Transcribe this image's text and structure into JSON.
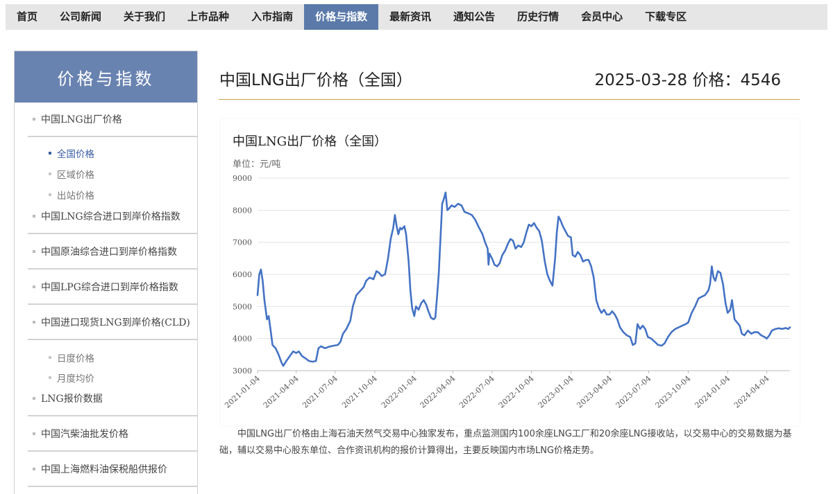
{
  "nav": {
    "items": [
      "首页",
      "公司新闻",
      "关于我们",
      "上市品种",
      "入市指南",
      "价格与指数",
      "最新资讯",
      "通知公告",
      "历史行情",
      "会员中心",
      "下载专区"
    ],
    "active_index": 5
  },
  "sidebar": {
    "title": "价格与指数",
    "items": [
      {
        "label": "中国LNG出厂价格",
        "subs": [
          "全国价格",
          "区域价格",
          "出站价格"
        ]
      },
      {
        "label": "中国LNG综合进口到岸价格指数"
      },
      {
        "label": "中国原油综合进口到岸价格指数"
      },
      {
        "label": "中国LPG综合进口到岸价格指数"
      },
      {
        "label": "中国进口现货LNG到岸价格(CLD)",
        "subs": [
          "日度价格",
          "月度均价"
        ]
      },
      {
        "label": "LNG报价数据"
      },
      {
        "label": "中国汽柴油批发价格"
      },
      {
        "label": "中国上海燃料油保税船供报价"
      }
    ],
    "active_sub": "全国价格"
  },
  "main": {
    "title": "中国LNG出厂价格（全国）",
    "price_line": "2025-03-28 价格：4546",
    "description": "中国LNG出厂价格由上海石油天然气交易中心独家发布，重点监测国内100余座LNG工厂和20余座LNG接收站，以交易中心的交易数据为基础，辅以交易中心股东单位、合作资讯机构的报价计算得出，主要反映国内市场LNG价格走势。"
  },
  "chart_data": {
    "type": "line",
    "title": "中国LNG出厂价格（全国）",
    "unit_label": "单位：元/吨",
    "ylim": [
      3000,
      9000
    ],
    "yticks": [
      3000,
      4000,
      5000,
      6000,
      7000,
      8000,
      9000
    ],
    "xticks": [
      "2021-01-04",
      "2021-04-04",
      "2021-07-04",
      "2021-10-04",
      "2022-01-04",
      "2022-04-04",
      "2022-07-04",
      "2022-10-04",
      "2023-01-04",
      "2023-04-04",
      "2023-07-04",
      "2023-10-04",
      "2024-01-04",
      "2024-04-04"
    ],
    "grid": true,
    "line_color": "#4472c4",
    "series": [
      {
        "values": [
          [
            "2021-01-04",
            5350
          ],
          [
            "2021-01-08",
            6000
          ],
          [
            "2021-01-12",
            6150
          ],
          [
            "2021-01-16",
            5800
          ],
          [
            "2021-01-20",
            5200
          ],
          [
            "2021-01-26",
            4600
          ],
          [
            "2021-01-30",
            4700
          ],
          [
            "2021-02-03",
            4300
          ],
          [
            "2021-02-08",
            3800
          ],
          [
            "2021-02-15",
            3700
          ],
          [
            "2021-02-22",
            3500
          ],
          [
            "2021-03-01",
            3250
          ],
          [
            "2021-03-05",
            3150
          ],
          [
            "2021-03-12",
            3300
          ],
          [
            "2021-03-20",
            3450
          ],
          [
            "2021-03-28",
            3600
          ],
          [
            "2021-04-04",
            3550
          ],
          [
            "2021-04-10",
            3600
          ],
          [
            "2021-04-18",
            3450
          ],
          [
            "2021-04-26",
            3380
          ],
          [
            "2021-05-04",
            3300
          ],
          [
            "2021-05-12",
            3280
          ],
          [
            "2021-05-20",
            3300
          ],
          [
            "2021-05-26",
            3700
          ],
          [
            "2021-06-01",
            3760
          ],
          [
            "2021-06-10",
            3700
          ],
          [
            "2021-06-20",
            3750
          ],
          [
            "2021-07-01",
            3780
          ],
          [
            "2021-07-10",
            3800
          ],
          [
            "2021-07-16",
            3900
          ],
          [
            "2021-07-22",
            4150
          ],
          [
            "2021-07-30",
            4300
          ],
          [
            "2021-08-08",
            4550
          ],
          [
            "2021-08-14",
            5000
          ],
          [
            "2021-08-22",
            5350
          ],
          [
            "2021-09-01",
            5500
          ],
          [
            "2021-09-08",
            5600
          ],
          [
            "2021-09-14",
            5800
          ],
          [
            "2021-09-22",
            5900
          ],
          [
            "2021-10-01",
            5850
          ],
          [
            "2021-10-08",
            6100
          ],
          [
            "2021-10-14",
            6050
          ],
          [
            "2021-10-20",
            5950
          ],
          [
            "2021-10-28",
            6000
          ],
          [
            "2021-11-04",
            6500
          ],
          [
            "2021-11-10",
            7100
          ],
          [
            "2021-11-16",
            7450
          ],
          [
            "2021-11-20",
            7850
          ],
          [
            "2021-11-24",
            7500
          ],
          [
            "2021-11-28",
            7250
          ],
          [
            "2021-12-02",
            7450
          ],
          [
            "2021-12-06",
            7400
          ],
          [
            "2021-12-12",
            7500
          ],
          [
            "2021-12-16",
            7250
          ],
          [
            "2021-12-22",
            6400
          ],
          [
            "2021-12-26",
            5500
          ],
          [
            "2021-12-30",
            4950
          ],
          [
            "2022-01-04",
            4700
          ],
          [
            "2022-01-08",
            5000
          ],
          [
            "2022-01-14",
            4900
          ],
          [
            "2022-01-20",
            5100
          ],
          [
            "2022-01-26",
            5200
          ],
          [
            "2022-02-01",
            5050
          ],
          [
            "2022-02-06",
            4850
          ],
          [
            "2022-02-12",
            4650
          ],
          [
            "2022-02-18",
            4600
          ],
          [
            "2022-02-22",
            4650
          ],
          [
            "2022-02-26",
            5300
          ],
          [
            "2022-03-02",
            6000
          ],
          [
            "2022-03-06",
            7100
          ],
          [
            "2022-03-10",
            8200
          ],
          [
            "2022-03-14",
            8350
          ],
          [
            "2022-03-18",
            8550
          ],
          [
            "2022-03-22",
            8000
          ],
          [
            "2022-03-26",
            8050
          ],
          [
            "2022-04-01",
            8150
          ],
          [
            "2022-04-08",
            8100
          ],
          [
            "2022-04-16",
            8200
          ],
          [
            "2022-04-24",
            8150
          ],
          [
            "2022-05-01",
            7950
          ],
          [
            "2022-05-10",
            7900
          ],
          [
            "2022-05-18",
            7850
          ],
          [
            "2022-05-26",
            7700
          ],
          [
            "2022-06-04",
            7450
          ],
          [
            "2022-06-12",
            7250
          ],
          [
            "2022-06-18",
            7000
          ],
          [
            "2022-06-24",
            6800
          ],
          [
            "2022-06-26",
            6300
          ],
          [
            "2022-06-28",
            6650
          ],
          [
            "2022-07-04",
            6500
          ],
          [
            "2022-07-10",
            6300
          ],
          [
            "2022-07-16",
            6250
          ],
          [
            "2022-07-22",
            6350
          ],
          [
            "2022-07-28",
            6600
          ],
          [
            "2022-08-04",
            6750
          ],
          [
            "2022-08-10",
            6950
          ],
          [
            "2022-08-16",
            7100
          ],
          [
            "2022-08-22",
            7050
          ],
          [
            "2022-08-28",
            6800
          ],
          [
            "2022-09-03",
            6900
          ],
          [
            "2022-09-10",
            6850
          ],
          [
            "2022-09-16",
            7000
          ],
          [
            "2022-09-22",
            7300
          ],
          [
            "2022-09-28",
            7550
          ],
          [
            "2022-10-04",
            7500
          ],
          [
            "2022-10-10",
            7600
          ],
          [
            "2022-10-16",
            7450
          ],
          [
            "2022-10-22",
            7350
          ],
          [
            "2022-10-28",
            7050
          ],
          [
            "2022-11-04",
            6400
          ],
          [
            "2022-11-10",
            6000
          ],
          [
            "2022-11-16",
            5800
          ],
          [
            "2022-11-22",
            5650
          ],
          [
            "2022-11-28",
            6500
          ],
          [
            "2022-12-02",
            7300
          ],
          [
            "2022-12-06",
            7800
          ],
          [
            "2022-12-10",
            7700
          ],
          [
            "2022-12-16",
            7500
          ],
          [
            "2022-12-22",
            7350
          ],
          [
            "2022-12-28",
            7200
          ],
          [
            "2023-01-04",
            7150
          ],
          [
            "2023-01-08",
            6600
          ],
          [
            "2023-01-14",
            6550
          ],
          [
            "2023-01-20",
            6700
          ],
          [
            "2023-01-26",
            6600
          ],
          [
            "2023-02-01",
            6400
          ],
          [
            "2023-02-08",
            6450
          ],
          [
            "2023-02-14",
            6450
          ],
          [
            "2023-02-20",
            6250
          ],
          [
            "2023-02-26",
            5900
          ],
          [
            "2023-03-04",
            5200
          ],
          [
            "2023-03-10",
            4950
          ],
          [
            "2023-03-16",
            4800
          ],
          [
            "2023-03-22",
            4900
          ],
          [
            "2023-03-28",
            4750
          ],
          [
            "2023-04-04",
            4750
          ],
          [
            "2023-04-10",
            4850
          ],
          [
            "2023-04-16",
            4750
          ],
          [
            "2023-04-22",
            4600
          ],
          [
            "2023-04-28",
            4350
          ],
          [
            "2023-05-06",
            4200
          ],
          [
            "2023-05-14",
            4100
          ],
          [
            "2023-05-22",
            4050
          ],
          [
            "2023-05-28",
            3800
          ],
          [
            "2023-06-03",
            3850
          ],
          [
            "2023-06-08",
            4450
          ],
          [
            "2023-06-14",
            4300
          ],
          [
            "2023-06-20",
            4400
          ],
          [
            "2023-06-26",
            4300
          ],
          [
            "2023-07-02",
            4050
          ],
          [
            "2023-07-10",
            4000
          ],
          [
            "2023-07-18",
            3900
          ],
          [
            "2023-07-26",
            3800
          ],
          [
            "2023-08-03",
            3780
          ],
          [
            "2023-08-10",
            3850
          ],
          [
            "2023-08-18",
            4050
          ],
          [
            "2023-08-26",
            4200
          ],
          [
            "2023-09-04",
            4300
          ],
          [
            "2023-09-12",
            4350
          ],
          [
            "2023-09-20",
            4400
          ],
          [
            "2023-09-28",
            4450
          ],
          [
            "2023-10-04",
            4500
          ],
          [
            "2023-10-12",
            4800
          ],
          [
            "2023-10-20",
            5000
          ],
          [
            "2023-10-28",
            5250
          ],
          [
            "2023-11-04",
            5300
          ],
          [
            "2023-11-12",
            5350
          ],
          [
            "2023-11-20",
            5500
          ],
          [
            "2023-11-24",
            5700
          ],
          [
            "2023-11-28",
            6250
          ],
          [
            "2023-12-02",
            5900
          ],
          [
            "2023-12-06",
            5800
          ],
          [
            "2023-12-12",
            6100
          ],
          [
            "2023-12-18",
            6050
          ],
          [
            "2023-12-24",
            5700
          ],
          [
            "2023-12-30",
            5100
          ],
          [
            "2024-01-04",
            4800
          ],
          [
            "2024-01-10",
            4900
          ],
          [
            "2024-01-14",
            5200
          ],
          [
            "2024-01-20",
            4600
          ],
          [
            "2024-01-26",
            4500
          ],
          [
            "2024-02-01",
            4400
          ],
          [
            "2024-02-06",
            4150
          ],
          [
            "2024-02-12",
            4100
          ],
          [
            "2024-02-20",
            4250
          ],
          [
            "2024-02-28",
            4150
          ],
          [
            "2024-03-06",
            4200
          ],
          [
            "2024-03-14",
            4200
          ],
          [
            "2024-03-22",
            4100
          ],
          [
            "2024-03-30",
            4050
          ],
          [
            "2024-04-04",
            4000
          ],
          [
            "2024-04-10",
            4100
          ],
          [
            "2024-04-16",
            4250
          ],
          [
            "2024-04-24",
            4300
          ],
          [
            "2024-05-02",
            4320
          ],
          [
            "2024-05-10",
            4300
          ],
          [
            "2024-05-18",
            4330
          ],
          [
            "2024-05-24",
            4300
          ],
          [
            "2024-05-28",
            4350
          ]
        ]
      }
    ]
  }
}
